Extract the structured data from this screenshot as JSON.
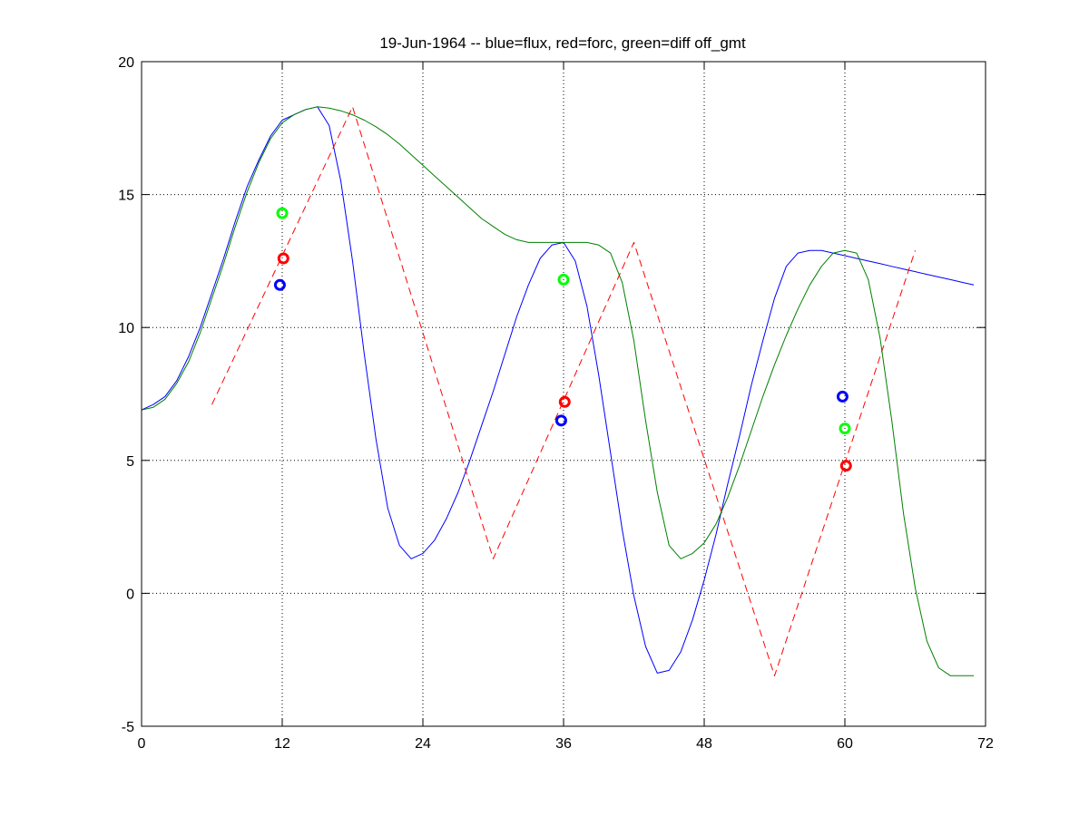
{
  "chart_data": {
    "type": "line",
    "title": "19-Jun-1964 -- blue=flux, red=forc, green=diff off_gmt",
    "xlabel": "",
    "ylabel": "",
    "xlim": [
      0,
      72
    ],
    "ylim": [
      -5,
      20
    ],
    "xticks": [
      0,
      12,
      24,
      36,
      48,
      60,
      72
    ],
    "yticks": [
      -5,
      0,
      5,
      10,
      15,
      20
    ],
    "grid": true,
    "series": [
      {
        "color": "#0000ff",
        "style": "solid",
        "x": [
          0,
          1,
          2,
          3,
          4,
          5,
          6,
          7,
          8,
          9,
          10,
          11,
          12,
          13,
          14,
          15,
          16,
          17,
          18,
          19,
          20,
          21,
          22,
          23,
          24,
          25,
          26,
          27,
          28,
          29,
          30,
          31,
          32,
          33,
          34,
          35,
          36,
          37,
          38,
          39,
          40,
          41,
          42,
          43,
          44,
          45,
          46,
          47,
          48,
          49,
          50,
          51,
          52,
          53,
          54,
          55,
          56,
          57,
          58,
          59,
          60,
          61,
          62,
          63,
          64,
          65,
          66,
          67,
          68,
          69,
          70,
          71
        ],
        "y": [
          6.9,
          7.1,
          7.4,
          8.0,
          8.9,
          10.0,
          11.3,
          12.6,
          14.0,
          15.3,
          16.3,
          17.2,
          17.8,
          18.0,
          18.2,
          18.3,
          17.6,
          15.5,
          12.5,
          9.0,
          5.8,
          3.2,
          1.8,
          1.3,
          1.5,
          2.0,
          2.8,
          3.8,
          5.0,
          6.3,
          7.6,
          9.0,
          10.4,
          11.6,
          12.6,
          13.1,
          13.2,
          12.5,
          10.8,
          8.2,
          5.3,
          2.4,
          -0.1,
          -2.0,
          -3.0,
          -2.9,
          -2.2,
          -1.0,
          0.5,
          2.2,
          4.1,
          5.9,
          7.8,
          9.5,
          11.1,
          12.3,
          12.8,
          12.9,
          12.9,
          12.8,
          12.7,
          12.6,
          12.5,
          12.4,
          12.3,
          12.2,
          12.1,
          12.0,
          11.9,
          11.8,
          11.7,
          11.6
        ]
      },
      {
        "color": "#ff0000",
        "style": "dashed",
        "x": [
          6,
          18,
          30,
          42,
          54,
          66
        ],
        "y": [
          7.1,
          18.3,
          1.3,
          13.2,
          -3.1,
          12.9
        ]
      },
      {
        "color": "#008000",
        "style": "solid",
        "x": [
          0,
          1,
          2,
          3,
          4,
          5,
          6,
          7,
          8,
          9,
          10,
          11,
          12,
          13,
          14,
          15,
          16,
          17,
          18,
          19,
          20,
          21,
          22,
          23,
          24,
          25,
          26,
          27,
          28,
          29,
          30,
          31,
          32,
          33,
          34,
          35,
          36,
          37,
          38,
          39,
          40,
          41,
          42,
          43,
          44,
          45,
          46,
          47,
          48,
          49,
          50,
          51,
          52,
          53,
          54,
          55,
          56,
          57,
          58,
          59,
          60,
          61,
          62,
          63,
          64,
          65,
          66,
          67,
          68,
          69,
          70,
          71
        ],
        "y": [
          6.9,
          7.0,
          7.3,
          7.9,
          8.7,
          9.8,
          11.1,
          12.4,
          13.8,
          15.1,
          16.2,
          17.1,
          17.7,
          18.0,
          18.2,
          18.3,
          18.25,
          18.15,
          18.0,
          17.8,
          17.55,
          17.25,
          16.9,
          16.5,
          16.1,
          15.7,
          15.3,
          14.9,
          14.5,
          14.1,
          13.8,
          13.5,
          13.3,
          13.2,
          13.2,
          13.2,
          13.2,
          13.2,
          13.2,
          13.1,
          12.8,
          11.7,
          9.5,
          6.5,
          3.8,
          1.8,
          1.3,
          1.5,
          1.9,
          2.6,
          3.6,
          4.8,
          6.1,
          7.4,
          8.6,
          9.7,
          10.7,
          11.6,
          12.3,
          12.8,
          12.9,
          12.8,
          11.8,
          9.6,
          6.5,
          3.0,
          0.2,
          -1.8,
          -2.8,
          -3.1,
          -3.1,
          -3.1
        ]
      },
      {
        "color": "#0000ff",
        "style": "markers",
        "x": [
          11.8,
          35.8,
          59.8
        ],
        "y": [
          11.6,
          6.5,
          7.4
        ]
      },
      {
        "color": "#ff0000",
        "style": "markers",
        "x": [
          12.1,
          36.1,
          60.1
        ],
        "y": [
          12.6,
          7.2,
          4.8
        ]
      },
      {
        "color": "#00ff00",
        "style": "markers",
        "x": [
          12.0,
          36.0,
          60.0
        ],
        "y": [
          14.3,
          11.8,
          6.2
        ]
      }
    ]
  }
}
